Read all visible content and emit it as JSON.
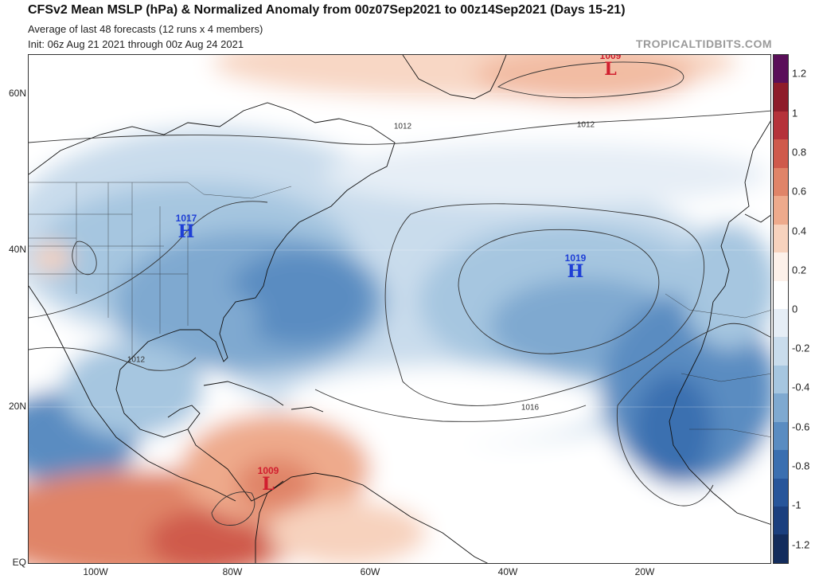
{
  "header": {
    "title": "CFSv2 Mean MSLP (hPa) & Normalized Anomaly from 00z07Sep2021 to 00z14Sep2021 (Days 15-21)",
    "subtitle1": "Average of last 48 forecasts (12 runs x 4 members)",
    "subtitle2": "Init: 06z Aug 21 2021 through 00z Aug 24 2021",
    "brand": "TROPICALTIDBITS.COM"
  },
  "axes": {
    "lat_labels": [
      "60N",
      "40N",
      "20N",
      "EQ"
    ],
    "lon_labels": [
      "100W",
      "80W",
      "60W",
      "40W",
      "20W"
    ]
  },
  "colorbar": {
    "ticks": [
      "1.2",
      "1",
      "0.8",
      "0.6",
      "0.4",
      "0.2",
      "0",
      "-0.2",
      "-0.4",
      "-0.6",
      "-0.8",
      "-1",
      "-1.2"
    ],
    "colors": [
      "#5a0f59",
      "#8e1c2a",
      "#b5323a",
      "#cf5a4c",
      "#e08468",
      "#eeaa8c",
      "#f7d2bd",
      "#fdf1ea",
      "#ffffff",
      "#e6eef6",
      "#c9dcec",
      "#a6c6e0",
      "#7fa9d0",
      "#5a8cc1",
      "#3b6fb0",
      "#27559a",
      "#1b3f7e",
      "#132c5c"
    ]
  },
  "pressure_centers": [
    {
      "type": "H",
      "value": "1017",
      "kind": "high"
    },
    {
      "type": "H",
      "value": "1019",
      "kind": "high"
    },
    {
      "type": "L",
      "value": "1009",
      "kind": "low"
    },
    {
      "type": "L",
      "value": "1009",
      "kind": "low"
    }
  ],
  "isobar_labels": [
    "1012",
    "1012",
    "1012",
    "1016"
  ]
}
